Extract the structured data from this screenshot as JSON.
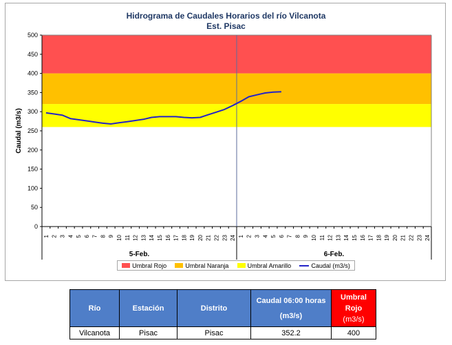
{
  "chart": {
    "title": "Hidrograma de Caudales Horarios del río Vilcanota",
    "subtitle": "Est. Pisac"
  },
  "chart_data": {
    "type": "line",
    "title": "Hidrograma de Caudales Horarios del río Vilcanota",
    "subtitle": "Est. Pisac",
    "ylabel": "Caudal  (m3/s)",
    "xlabel": "",
    "ylim": [
      0,
      500
    ],
    "yticks": [
      0,
      50,
      100,
      150,
      200,
      250,
      300,
      350,
      400,
      450,
      500
    ],
    "days": [
      "5-Feb.",
      "6-Feb."
    ],
    "hours_per_day": 24,
    "grid": false,
    "legend_position": "bottom",
    "thresholds": [
      {
        "name": "Umbral Rojo",
        "from": 400,
        "to": 500,
        "color": "#ff5050"
      },
      {
        "name": "Umbral Naranja",
        "from": 320,
        "to": 400,
        "color": "#ffc000"
      },
      {
        "name": "Umbral Amarillo",
        "from": 260,
        "to": 320,
        "color": "#ffff00"
      }
    ],
    "series": [
      {
        "name": "Caudal (m3/s)",
        "color": "#2323c8",
        "day1": [
          297,
          294,
          291,
          282,
          279,
          276,
          273,
          270,
          268,
          271,
          274,
          277,
          280,
          285,
          287,
          287,
          287,
          285,
          284,
          285,
          292,
          299,
          306,
          316
        ],
        "day2": [
          327,
          339,
          344,
          349,
          351,
          352.2
        ]
      }
    ]
  },
  "table": {
    "headers": {
      "rio": "Río",
      "estacion": "Estación",
      "distrito": "Distrito",
      "caudal_line1": "Caudal 06:00 horas",
      "caudal_line2": "(m3/s)",
      "umbral_line1": "Umbral",
      "umbral_line2": "Rojo",
      "umbral_line3": "(m3/s)"
    },
    "row": {
      "rio": "Vilcanota",
      "estacion": "Pisac",
      "distrito": "Pisac",
      "caudal": "352.2",
      "umbral": "400"
    }
  }
}
